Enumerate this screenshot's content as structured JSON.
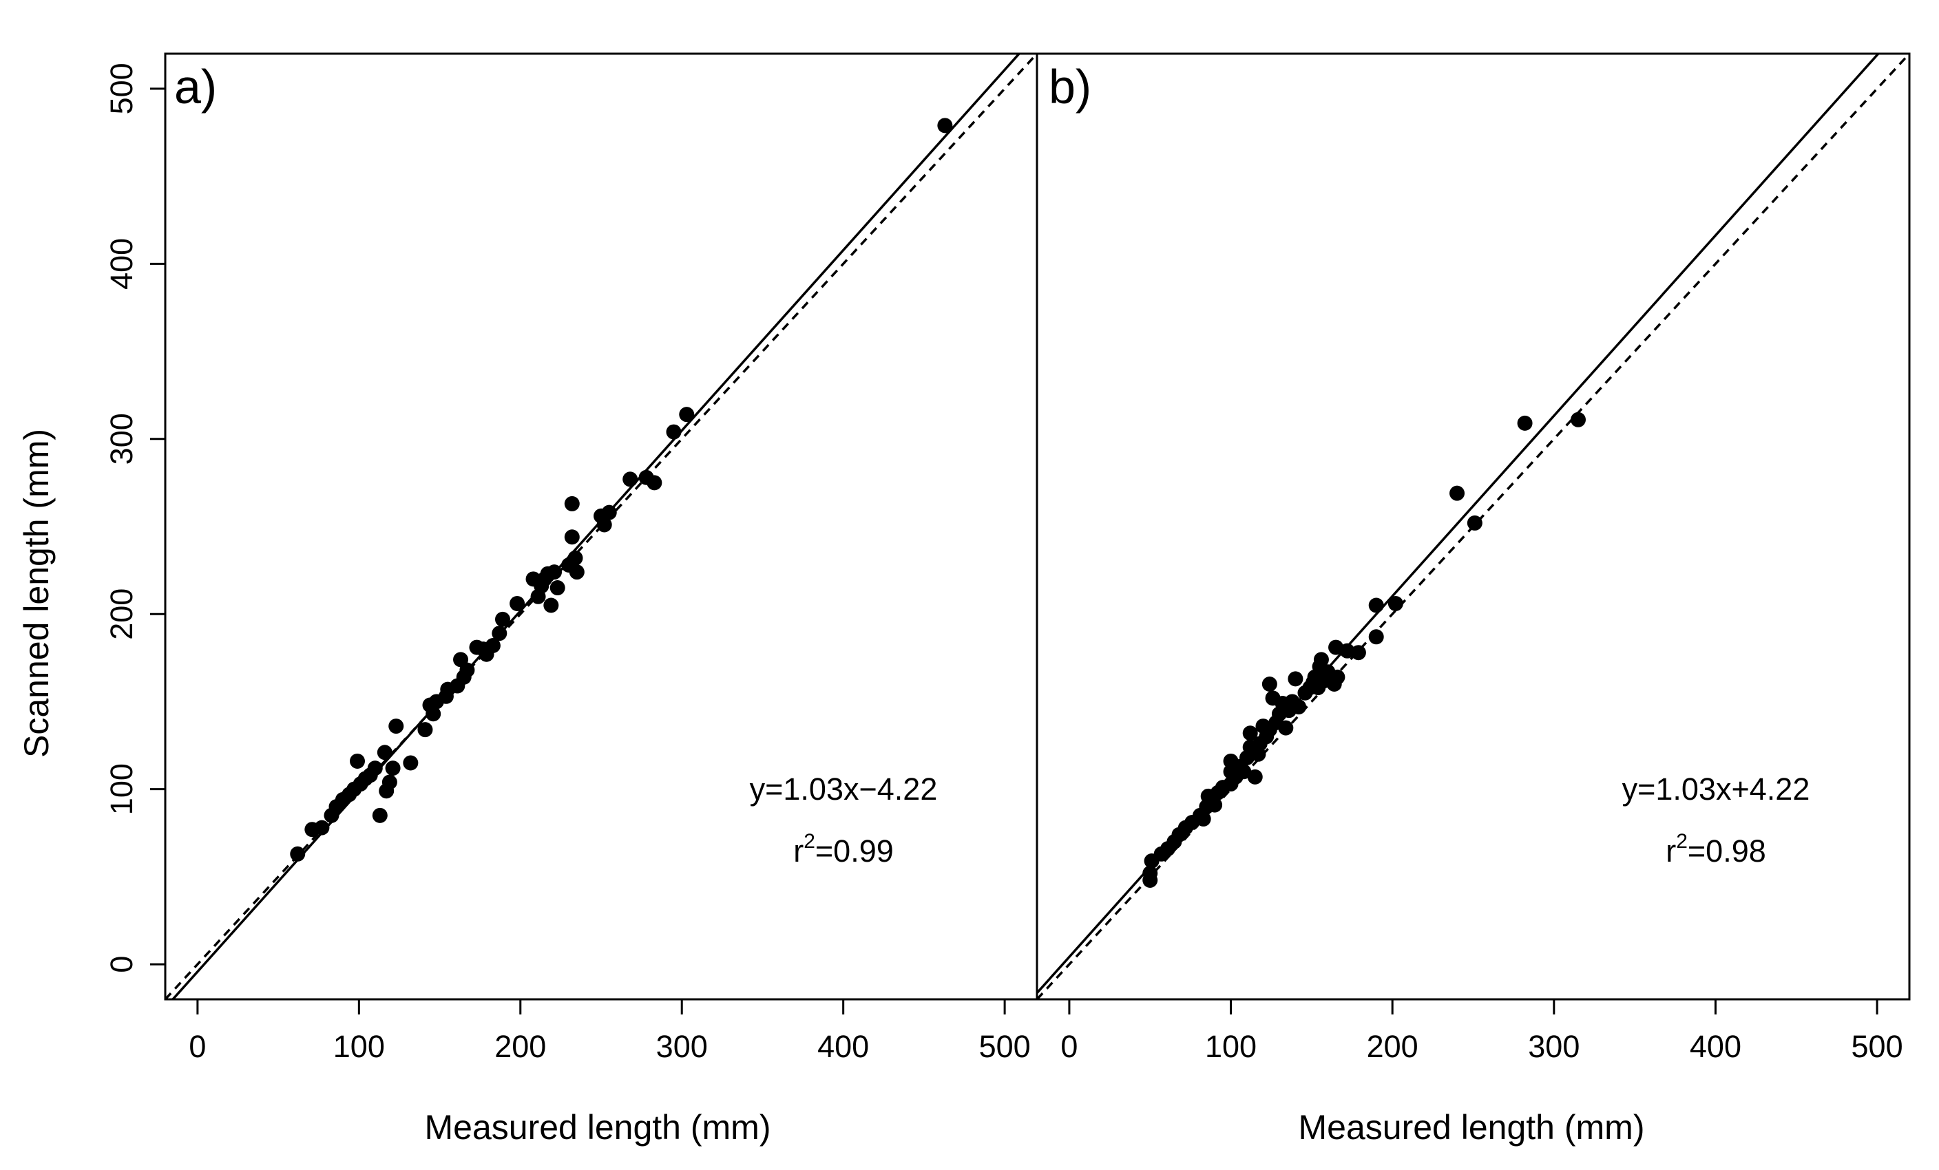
{
  "chart_data": [
    {
      "type": "scatter",
      "panel_label": "a)",
      "xlabel": "Measured length (mm)",
      "ylabel": "Scanned length (mm)",
      "xlim": [
        -20,
        520
      ],
      "ylim": [
        -20,
        520
      ],
      "xticks": [
        0,
        100,
        200,
        300,
        400,
        500
      ],
      "yticks": [
        0,
        100,
        200,
        300,
        400,
        500
      ],
      "equation": "y=1.03x−4.22",
      "r2_prefix": "r",
      "r2_sup": "2",
      "r2_value": "=0.99",
      "fit": {
        "slope": 1.03,
        "intercept": -4.22
      },
      "reference_line": {
        "slope": 1,
        "intercept": 0,
        "style": "dashed"
      },
      "points": [
        [
          62,
          63
        ],
        [
          71,
          77
        ],
        [
          77,
          78
        ],
        [
          83,
          85
        ],
        [
          86,
          90
        ],
        [
          90,
          94
        ],
        [
          94,
          97
        ],
        [
          97,
          100
        ],
        [
          99,
          116
        ],
        [
          101,
          103
        ],
        [
          104,
          106
        ],
        [
          107,
          108
        ],
        [
          110,
          112
        ],
        [
          113,
          85
        ],
        [
          116,
          121
        ],
        [
          117,
          99
        ],
        [
          119,
          104
        ],
        [
          121,
          112
        ],
        [
          123,
          136
        ],
        [
          132,
          115
        ],
        [
          141,
          134
        ],
        [
          144,
          148
        ],
        [
          146,
          143
        ],
        [
          148,
          150
        ],
        [
          154,
          153
        ],
        [
          155,
          157
        ],
        [
          161,
          159
        ],
        [
          163,
          174
        ],
        [
          165,
          164
        ],
        [
          167,
          168
        ],
        [
          173,
          181
        ],
        [
          177,
          180
        ],
        [
          179,
          177
        ],
        [
          183,
          182
        ],
        [
          187,
          189
        ],
        [
          189,
          197
        ],
        [
          198,
          206
        ],
        [
          208,
          220
        ],
        [
          211,
          210
        ],
        [
          213,
          216
        ],
        [
          215,
          220
        ],
        [
          217,
          223
        ],
        [
          219,
          205
        ],
        [
          221,
          224
        ],
        [
          223,
          215
        ],
        [
          230,
          228
        ],
        [
          232,
          244
        ],
        [
          232,
          263
        ],
        [
          234,
          232
        ],
        [
          235,
          224
        ],
        [
          250,
          256
        ],
        [
          252,
          251
        ],
        [
          255,
          258
        ],
        [
          268,
          277
        ],
        [
          278,
          278
        ],
        [
          283,
          275
        ],
        [
          295,
          304
        ],
        [
          303,
          314
        ],
        [
          463,
          479
        ]
      ]
    },
    {
      "type": "scatter",
      "panel_label": "b)",
      "xlabel": "Measured length (mm)",
      "ylabel": "",
      "xlim": [
        -20,
        520
      ],
      "ylim": [
        -20,
        520
      ],
      "xticks": [
        0,
        100,
        200,
        300,
        400,
        500
      ],
      "equation": "y=1.03x+4.22",
      "r2_prefix": "r",
      "r2_sup": "2",
      "r2_value": "=0.98",
      "fit": {
        "slope": 1.03,
        "intercept": 4.22
      },
      "reference_line": {
        "slope": 1,
        "intercept": 0,
        "style": "dashed"
      },
      "points": [
        [
          50,
          48
        ],
        [
          50,
          52
        ],
        [
          51,
          59
        ],
        [
          57,
          63
        ],
        [
          61,
          66
        ],
        [
          65,
          70
        ],
        [
          68,
          74
        ],
        [
          72,
          78
        ],
        [
          76,
          81
        ],
        [
          81,
          85
        ],
        [
          83,
          83
        ],
        [
          85,
          90
        ],
        [
          86,
          96
        ],
        [
          90,
          91
        ],
        [
          92,
          98
        ],
        [
          95,
          101
        ],
        [
          100,
          103
        ],
        [
          100,
          110
        ],
        [
          100,
          116
        ],
        [
          103,
          107
        ],
        [
          106,
          113
        ],
        [
          108,
          110
        ],
        [
          110,
          118
        ],
        [
          112,
          124
        ],
        [
          112,
          132
        ],
        [
          115,
          107
        ],
        [
          117,
          120
        ],
        [
          118,
          126
        ],
        [
          120,
          136
        ],
        [
          122,
          130
        ],
        [
          124,
          134
        ],
        [
          124,
          160
        ],
        [
          126,
          152
        ],
        [
          128,
          138
        ],
        [
          130,
          143
        ],
        [
          132,
          149
        ],
        [
          134,
          135
        ],
        [
          136,
          145
        ],
        [
          138,
          150
        ],
        [
          140,
          163
        ],
        [
          142,
          147
        ],
        [
          146,
          155
        ],
        [
          149,
          158
        ],
        [
          151,
          161
        ],
        [
          152,
          164
        ],
        [
          154,
          158
        ],
        [
          155,
          170
        ],
        [
          156,
          174
        ],
        [
          158,
          162
        ],
        [
          160,
          167
        ],
        [
          164,
          160
        ],
        [
          165,
          181
        ],
        [
          166,
          164
        ],
        [
          172,
          179
        ],
        [
          179,
          178
        ],
        [
          190,
          205
        ],
        [
          190,
          187
        ],
        [
          202,
          206
        ],
        [
          240,
          269
        ],
        [
          251,
          252
        ],
        [
          282,
          309
        ],
        [
          315,
          311
        ]
      ]
    }
  ]
}
